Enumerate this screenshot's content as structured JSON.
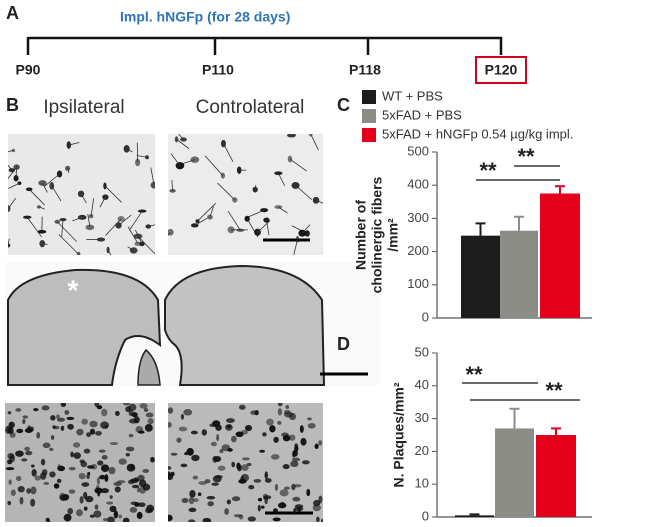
{
  "timeline": {
    "panel": "A",
    "title": "Impl. hNGFp (for 28 days)",
    "points": [
      "P90",
      "P110",
      "P118",
      "P120"
    ]
  },
  "images": {
    "panel": "B",
    "columns": [
      "Ipsilateral",
      "Controlateral"
    ],
    "marker": "*"
  },
  "legend": [
    "WT + PBS",
    "5xFAD + PBS",
    "5xFAD + hNGFp 0.54 µg/kg impl."
  ],
  "chart_data": [
    {
      "type": "bar",
      "panel": "C",
      "ylabel": [
        "Number of",
        "cholinergic fibers",
        "/mm²"
      ],
      "ylim": [
        0,
        500
      ],
      "yticks": [
        0,
        100,
        200,
        300,
        400,
        500
      ],
      "series": [
        {
          "name": "WT + PBS",
          "color": "#1c1c1c",
          "values": [
            248
          ],
          "errors": [
            37
          ]
        },
        {
          "name": "5xFAD + PBS",
          "color": "#8d8d88",
          "values": [
            263
          ],
          "errors": [
            42
          ]
        },
        {
          "name": "5xFAD + hNGFp 0.54 µg/kg impl.",
          "color": "#e2001a",
          "values": [
            375
          ],
          "errors": [
            22
          ]
        }
      ],
      "annotations": [
        "**",
        "**"
      ]
    },
    {
      "type": "bar",
      "panel": "D",
      "ylabel": "N. Plaques/mm²",
      "ylim": [
        0,
        50
      ],
      "yticks": [
        0,
        10,
        20,
        30,
        40,
        50
      ],
      "series": [
        {
          "color": "#1c1c1c",
          "values": [
            0.5
          ],
          "errors": [
            0.3
          ]
        },
        {
          "color": "#8d8d88",
          "values": [
            27
          ],
          "errors": [
            6
          ]
        },
        {
          "color": "#e2001a",
          "values": [
            25
          ],
          "errors": [
            2
          ]
        }
      ],
      "annotations": [
        "**",
        "**"
      ]
    }
  ]
}
